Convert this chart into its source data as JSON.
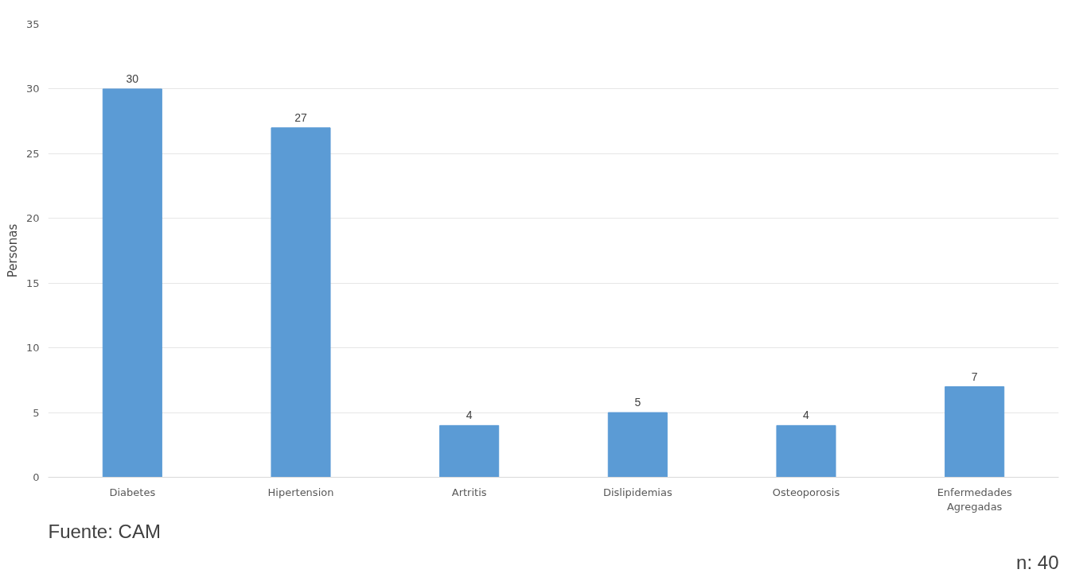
{
  "chart_data": {
    "type": "bar",
    "ylabel": "Personas",
    "categories": [
      "Diabetes",
      "Hipertension",
      "Artritis",
      "Dislipidemias",
      "Osteoporosis",
      "Enfermedades Agregadas"
    ],
    "values": [
      30,
      27,
      4,
      5,
      4,
      7
    ],
    "color": "#5b9bd5",
    "ylim": [
      0,
      35
    ],
    "yticks": [
      0,
      5,
      10,
      15,
      20,
      25,
      30,
      35
    ],
    "grid": "y",
    "data_labels": true,
    "annotations": [
      "Fuente: CAM",
      "n: 40"
    ]
  }
}
